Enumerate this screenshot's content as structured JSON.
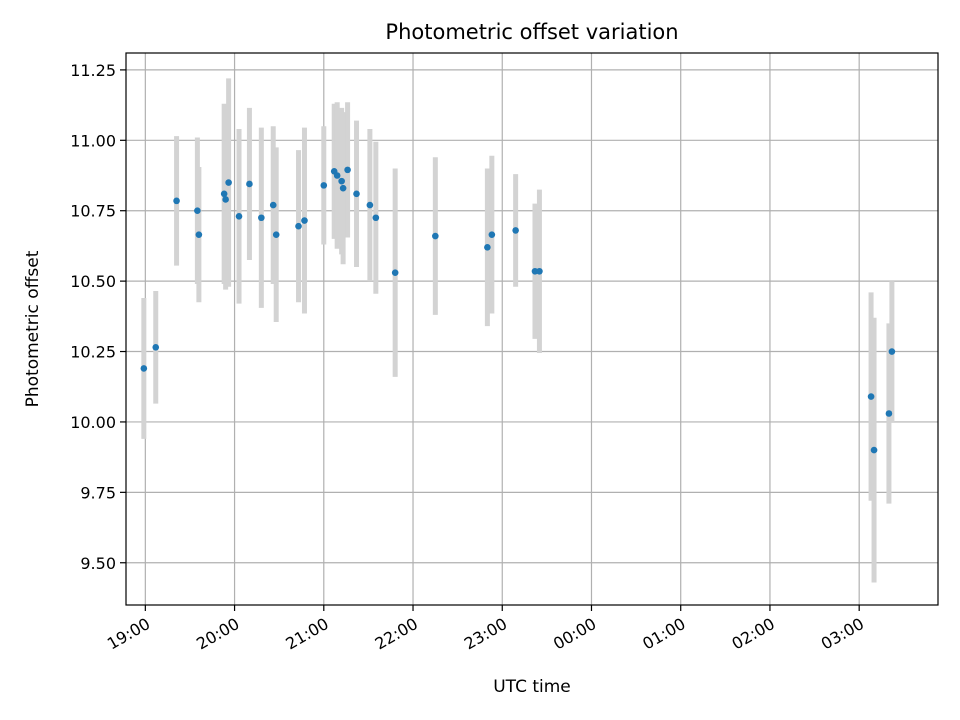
{
  "chart_data": {
    "type": "scatter",
    "title": "Photometric offset variation",
    "xlabel": "UTC time",
    "ylabel": "Photometric offset",
    "grid": true,
    "legend": "none",
    "xlim": [
      "2024-01-01T18:47",
      "2024-01-02T03:53"
    ],
    "ylim": [
      9.35,
      11.31
    ],
    "xticks": [
      {
        "t": "2024-01-01T19:00",
        "label": "19:00"
      },
      {
        "t": "2024-01-01T20:00",
        "label": "20:00"
      },
      {
        "t": "2024-01-01T21:00",
        "label": "21:00"
      },
      {
        "t": "2024-01-01T22:00",
        "label": "22:00"
      },
      {
        "t": "2024-01-01T23:00",
        "label": "23:00"
      },
      {
        "t": "2024-01-02T00:00",
        "label": "00:00"
      },
      {
        "t": "2024-01-02T01:00",
        "label": "01:00"
      },
      {
        "t": "2024-01-02T02:00",
        "label": "02:00"
      },
      {
        "t": "2024-01-02T03:00",
        "label": "03:00"
      }
    ],
    "yticks": [
      "9.50",
      "9.75",
      "10.00",
      "10.25",
      "10.50",
      "10.75",
      "11.00",
      "11.25"
    ],
    "colors": {
      "point": "#1f77b4",
      "errorbar": "#d3d3d3",
      "grid": "#b0b0b0"
    },
    "series": [
      {
        "points": [
          {
            "t": "2024-01-01T18:59",
            "y": 10.19,
            "err": 0.25
          },
          {
            "t": "2024-01-01T19:07",
            "y": 10.265,
            "err": 0.2
          },
          {
            "t": "2024-01-01T19:21",
            "y": 10.785,
            "err": 0.23
          },
          {
            "t": "2024-01-01T19:35",
            "y": 10.75,
            "err": 0.26
          },
          {
            "t": "2024-01-01T19:36",
            "y": 10.665,
            "err": 0.24
          },
          {
            "t": "2024-01-01T19:53",
            "y": 10.81,
            "err": 0.32
          },
          {
            "t": "2024-01-01T19:54",
            "y": 10.79,
            "err": 0.32
          },
          {
            "t": "2024-01-01T19:56",
            "y": 10.85,
            "err": 0.37
          },
          {
            "t": "2024-01-01T20:03",
            "y": 10.73,
            "err": 0.31
          },
          {
            "t": "2024-01-01T20:10",
            "y": 10.845,
            "err": 0.27
          },
          {
            "t": "2024-01-01T20:18",
            "y": 10.725,
            "err": 0.32
          },
          {
            "t": "2024-01-01T20:26",
            "y": 10.77,
            "err": 0.28
          },
          {
            "t": "2024-01-01T20:28",
            "y": 10.665,
            "err": 0.31
          },
          {
            "t": "2024-01-01T20:43",
            "y": 10.695,
            "err": 0.27
          },
          {
            "t": "2024-01-01T20:47",
            "y": 10.715,
            "err": 0.33
          },
          {
            "t": "2024-01-01T21:00",
            "y": 10.84,
            "err": 0.21
          },
          {
            "t": "2024-01-01T21:07",
            "y": 10.89,
            "err": 0.24
          },
          {
            "t": "2024-01-01T21:09",
            "y": 10.875,
            "err": 0.26
          },
          {
            "t": "2024-01-01T21:12",
            "y": 10.855,
            "err": 0.26
          },
          {
            "t": "2024-01-01T21:13",
            "y": 10.83,
            "err": 0.27
          },
          {
            "t": "2024-01-01T21:16",
            "y": 10.895,
            "err": 0.24
          },
          {
            "t": "2024-01-01T21:22",
            "y": 10.81,
            "err": 0.26
          },
          {
            "t": "2024-01-01T21:31",
            "y": 10.77,
            "err": 0.27
          },
          {
            "t": "2024-01-01T21:35",
            "y": 10.725,
            "err": 0.27
          },
          {
            "t": "2024-01-01T21:48",
            "y": 10.53,
            "err": 0.37
          },
          {
            "t": "2024-01-01T22:15",
            "y": 10.66,
            "err": 0.28
          },
          {
            "t": "2024-01-01T22:50",
            "y": 10.62,
            "err": 0.28
          },
          {
            "t": "2024-01-01T22:53",
            "y": 10.665,
            "err": 0.28
          },
          {
            "t": "2024-01-01T23:09",
            "y": 10.68,
            "err": 0.2
          },
          {
            "t": "2024-01-01T23:22",
            "y": 10.535,
            "err": 0.24
          },
          {
            "t": "2024-01-01T23:25",
            "y": 10.535,
            "err": 0.29
          },
          {
            "t": "2024-01-02T03:08",
            "y": 10.09,
            "err": 0.37
          },
          {
            "t": "2024-01-02T03:10",
            "y": 9.9,
            "err": 0.47
          },
          {
            "t": "2024-01-02T03:20",
            "y": 10.03,
            "err": 0.32
          },
          {
            "t": "2024-01-02T03:22",
            "y": 10.25,
            "err": 0.25
          }
        ]
      }
    ]
  }
}
